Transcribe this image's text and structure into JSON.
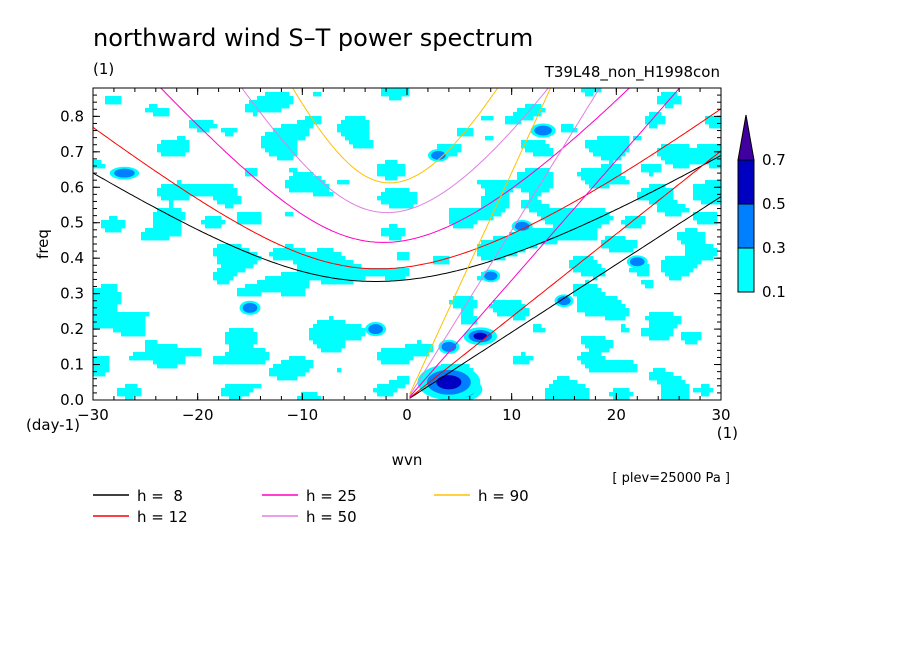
{
  "chart_data": {
    "type": "heatmap",
    "title": "northward wind S–T power spectrum",
    "subtitle_left": "(1)",
    "subtitle_right": "T39L48_non_H1998con",
    "xlabel": "wvn",
    "ylabel": "freq",
    "x_unit": "(1)",
    "y_unit": "(day-1)",
    "xlim": [
      -30,
      30
    ],
    "ylim": [
      0,
      0.88
    ],
    "x_ticks": [
      -30,
      -20,
      -10,
      0,
      10,
      20,
      30
    ],
    "x_tick_labels": [
      "−30",
      "−20",
      "−10",
      "0",
      "10",
      "20",
      "30"
    ],
    "y_ticks": [
      0,
      0.1,
      0.2,
      0.3,
      0.4,
      0.5,
      0.6,
      0.7,
      0.8
    ],
    "y_tick_labels": [
      "0.0",
      "0.1",
      "0.2",
      "0.3",
      "0.4",
      "0.5",
      "0.6",
      "0.7",
      "0.8"
    ],
    "colorbar": {
      "levels": [
        0.1,
        0.3,
        0.5,
        0.7
      ],
      "labels": [
        "0.1",
        "0.3",
        "0.5",
        "0.7"
      ],
      "colors": [
        "#00ffff",
        "#0080ff",
        "#0000c0",
        "#4000a0"
      ]
    },
    "note": "[ plev=25000 Pa ]",
    "series": [
      {
        "name": "h =  8",
        "h": 8,
        "color": "#000000"
      },
      {
        "name": "h = 12",
        "h": 12,
        "color": "#ff0000"
      },
      {
        "name": "h = 25",
        "h": 25,
        "color": "#ff00c0"
      },
      {
        "name": "h = 50",
        "h": 50,
        "color": "#e080e0"
      },
      {
        "name": "h = 90",
        "h": 90,
        "color": "#ffc000"
      }
    ],
    "field_blobs": [
      {
        "k": 5,
        "f": 0.03,
        "rk": 2.2,
        "rf": 0.035,
        "lev": 4
      },
      {
        "k": 4,
        "f": 0.05,
        "rk": 3.0,
        "rf": 0.05,
        "lev": 3
      },
      {
        "k": 7,
        "f": 0.18,
        "rk": 1.6,
        "rf": 0.025,
        "lev": 3
      },
      {
        "k": 4,
        "f": 0.15,
        "rk": 1.0,
        "rf": 0.02,
        "lev": 2
      },
      {
        "k": 13,
        "f": 0.76,
        "rk": 1.2,
        "rf": 0.02,
        "lev": 2
      },
      {
        "k": 3,
        "f": 0.69,
        "rk": 1.0,
        "rf": 0.018,
        "lev": 2
      },
      {
        "k": -15,
        "f": 0.26,
        "rk": 1.0,
        "rf": 0.02,
        "lev": 2
      },
      {
        "k": -27,
        "f": 0.64,
        "rk": 1.4,
        "rf": 0.018,
        "lev": 2
      },
      {
        "k": 11,
        "f": 0.49,
        "rk": 1.0,
        "rf": 0.018,
        "lev": 2
      },
      {
        "k": 22,
        "f": 0.39,
        "rk": 1.0,
        "rf": 0.018,
        "lev": 2
      },
      {
        "k": -3,
        "f": 0.2,
        "rk": 1.0,
        "rf": 0.02,
        "lev": 2
      },
      {
        "k": 15,
        "f": 0.28,
        "rk": 0.9,
        "rf": 0.018,
        "lev": 2
      },
      {
        "k": 8,
        "f": 0.35,
        "rk": 0.9,
        "rf": 0.018,
        "lev": 2
      }
    ]
  }
}
